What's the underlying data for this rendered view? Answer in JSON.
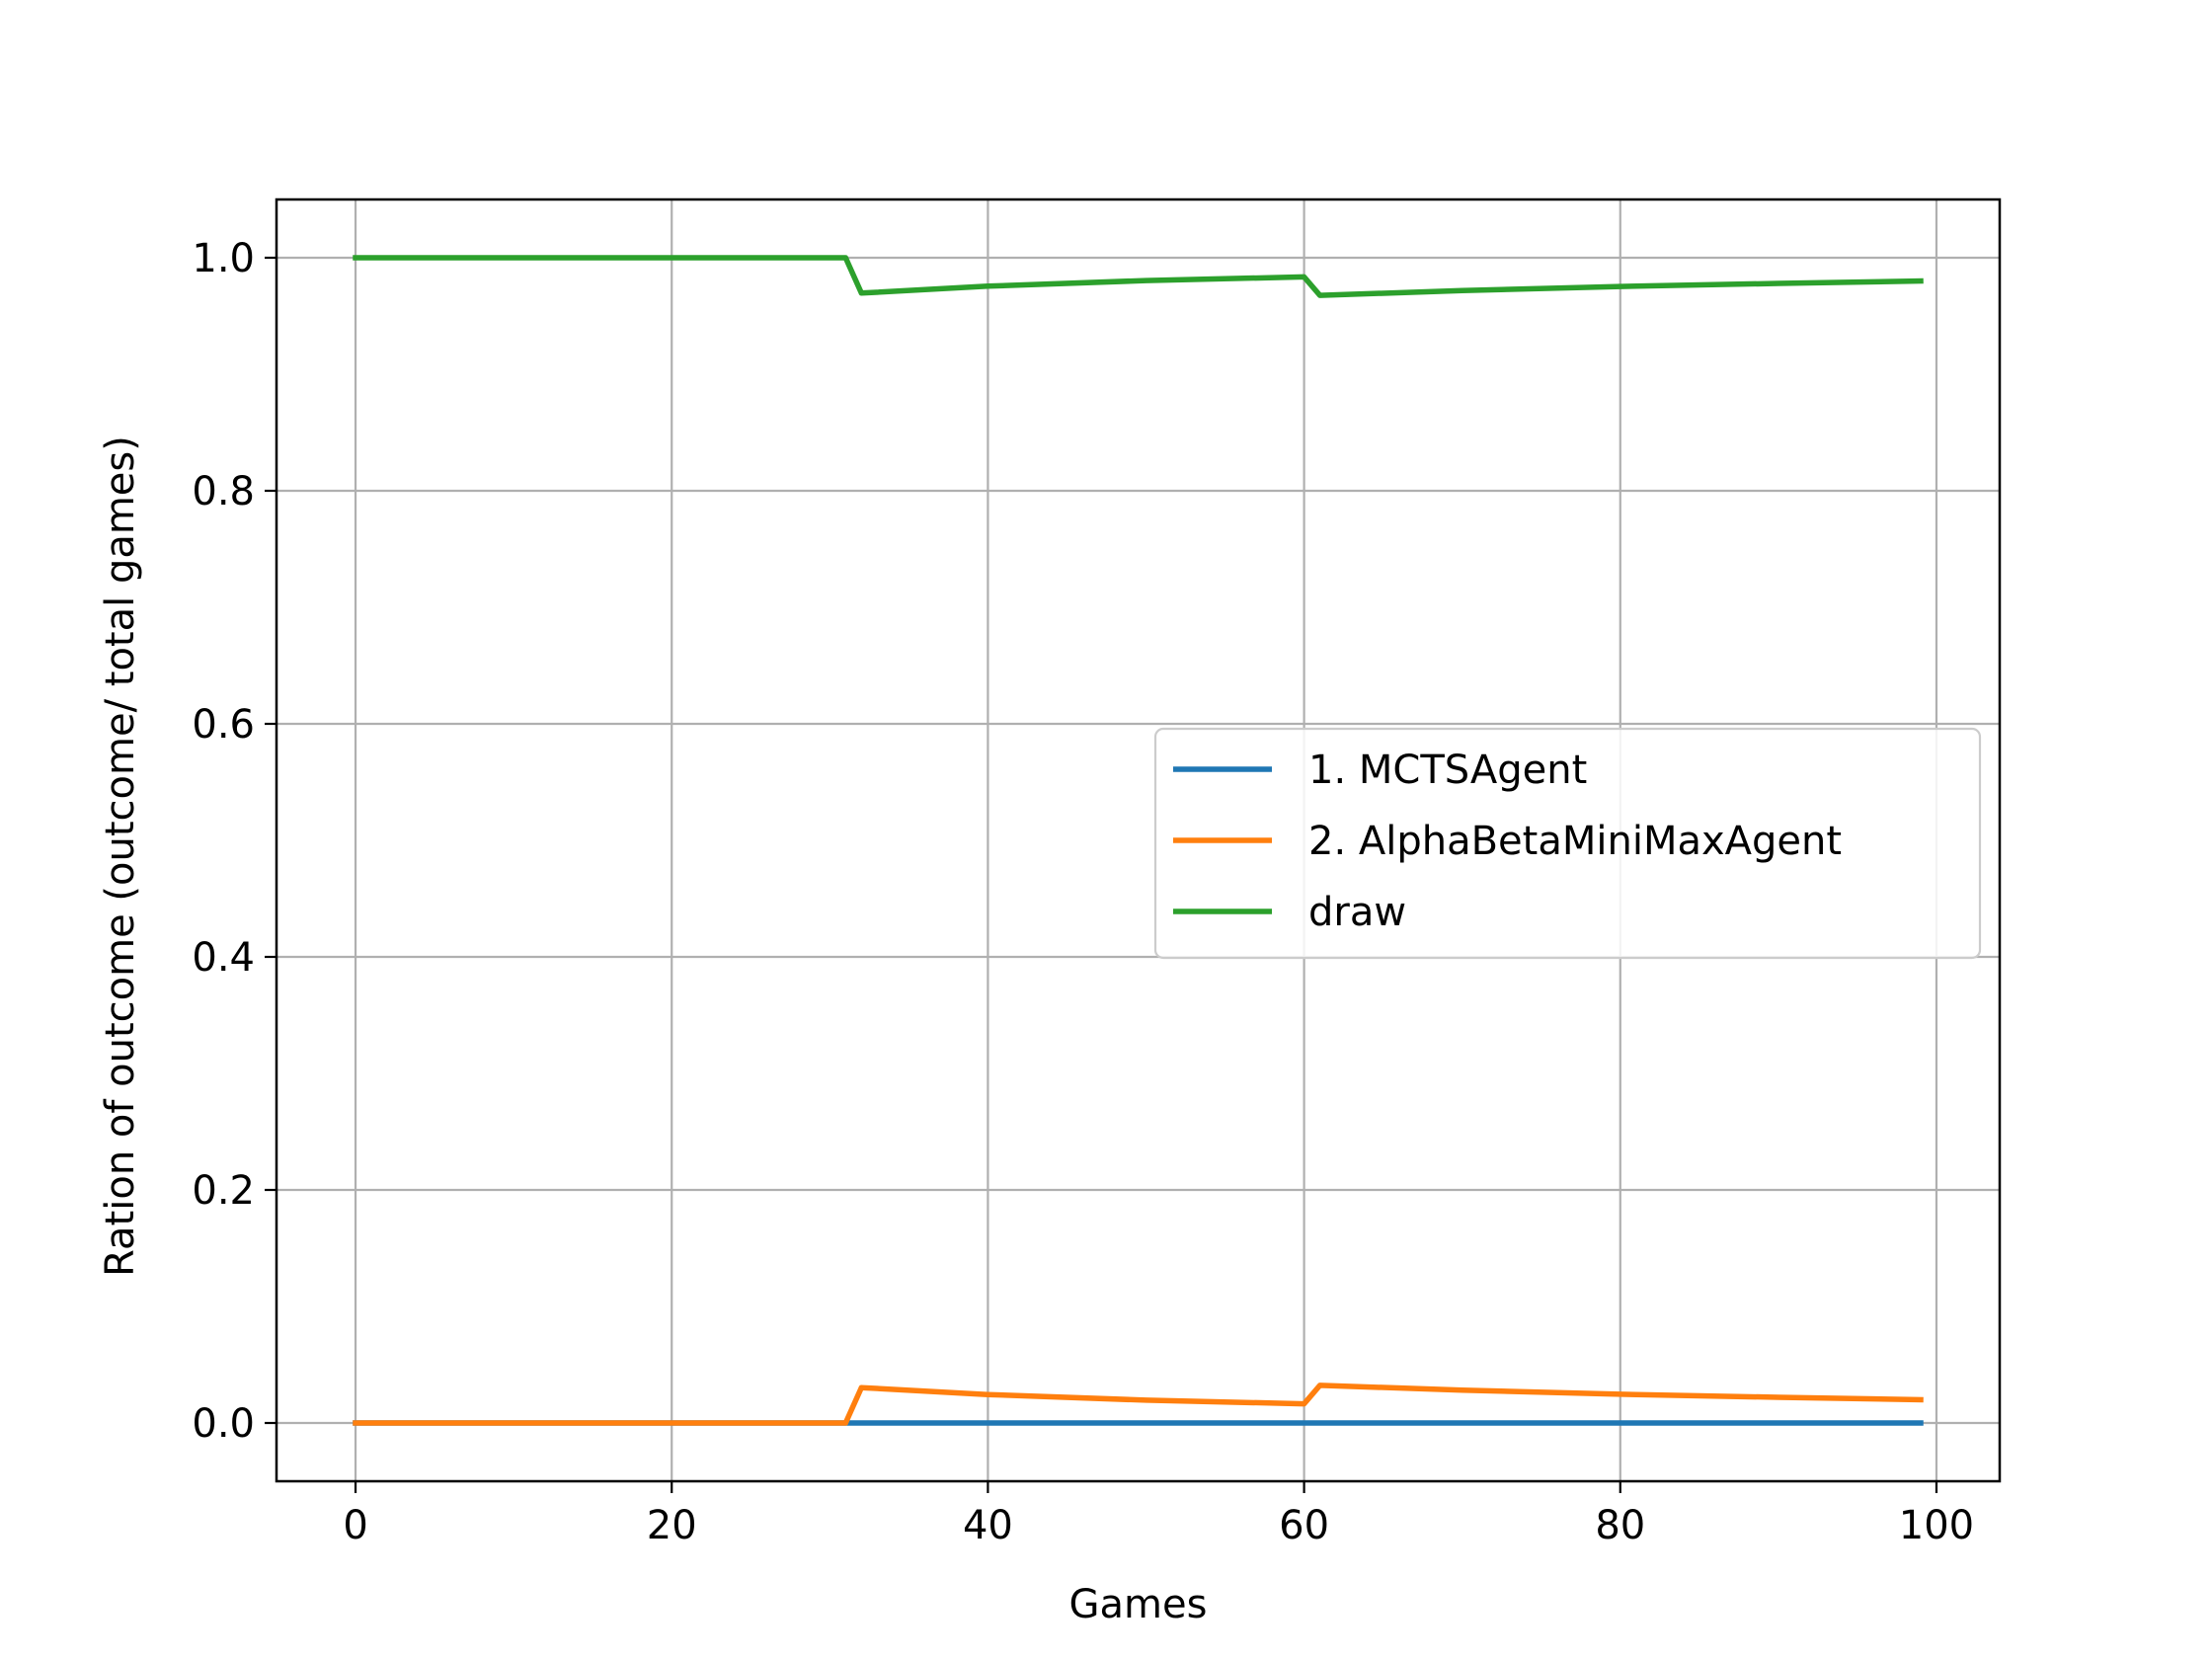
{
  "chart_data": {
    "type": "line",
    "title": "",
    "xlabel": "Games",
    "ylabel": "Ration of outcome (outcome/ total games)",
    "xlim": [
      -5,
      104
    ],
    "ylim": [
      -0.05,
      1.05
    ],
    "xticks": [
      0,
      20,
      40,
      60,
      80,
      100
    ],
    "xtick_labels": [
      "0",
      "20",
      "40",
      "60",
      "80",
      "100"
    ],
    "yticks": [
      0.0,
      0.2,
      0.4,
      0.6,
      0.8,
      1.0
    ],
    "ytick_labels": [
      "0.0",
      "0.2",
      "0.4",
      "0.6",
      "0.8",
      "1.0"
    ],
    "grid": true,
    "legend_position": "center-right",
    "series": [
      {
        "name": "1. MCTSAgent",
        "color": "#1f77b4",
        "x": [
          0,
          31,
          32,
          60,
          61,
          99
        ],
        "y": [
          0.0,
          0.0,
          0.0,
          0.0,
          0.0,
          0.0
        ]
      },
      {
        "name": "2. AlphaBetaMiniMaxAgent",
        "color": "#ff7f0e",
        "x": [
          0,
          31,
          32,
          40,
          50,
          60,
          61,
          70,
          80,
          90,
          99
        ],
        "y": [
          0.0,
          0.0,
          0.0303,
          0.0244,
          0.0196,
          0.0164,
          0.0323,
          0.0282,
          0.0247,
          0.022,
          0.02
        ]
      },
      {
        "name": "draw",
        "color": "#2ca02c",
        "x": [
          0,
          31,
          32,
          40,
          50,
          60,
          61,
          70,
          80,
          90,
          99
        ],
        "y": [
          1.0,
          1.0,
          0.9697,
          0.9756,
          0.9804,
          0.9836,
          0.9677,
          0.9718,
          0.9753,
          0.978,
          0.98
        ]
      }
    ]
  }
}
